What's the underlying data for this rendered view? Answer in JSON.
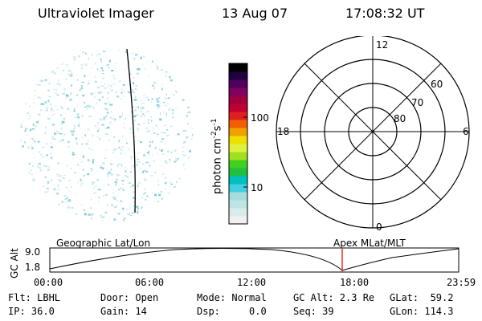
{
  "header": {
    "title": "Ultraviolet Imager",
    "date": "13 Aug 07",
    "time": "17:08:32 UT"
  },
  "colorbar": {
    "label": "photon cm",
    "label_exp1": "-2",
    "label_mid": "s",
    "label_exp2": "-1",
    "ticks": [
      "100",
      "10"
    ],
    "colors": [
      "#f0f0f0",
      "#d8ecec",
      "#bfe4e4",
      "#a6dcdc",
      "#40d0e0",
      "#00c0c0",
      "#20c040",
      "#40d020",
      "#a0e020",
      "#e0f040",
      "#f0e000",
      "#f0a000",
      "#f06000",
      "#e02020",
      "#c00030",
      "#a00040",
      "#800060",
      "#500060",
      "#200040",
      "#000000"
    ]
  },
  "polar": {
    "labels": {
      "top": "12",
      "left": "18",
      "right": "6",
      "bottom": "0"
    },
    "lat_labels": [
      "60",
      "70",
      "80"
    ]
  },
  "timeline": {
    "ylabel": "GC Alt",
    "ymax": "9.0",
    "ymin": "1.8",
    "left_label": "Geographic Lat/Lon",
    "right_label": "Apex  MLat/MLT",
    "xticks": [
      "00:00",
      "06:00",
      "12:00",
      "18:00",
      "23:59"
    ],
    "marker_color": "#e02020"
  },
  "info": {
    "filter": "Flt: LBHL",
    "ip": "IP: 36.0",
    "door": "Door: Open",
    "gain": "Gain: 14",
    "mode": "Mode: Normal",
    "dsp": "Dsp:     0.0",
    "gcalt": "GC Alt: 2.3 Re",
    "seq": "Seq: 39",
    "glat": "GLat:  59.2",
    "glon": "GLon: 114.3"
  }
}
